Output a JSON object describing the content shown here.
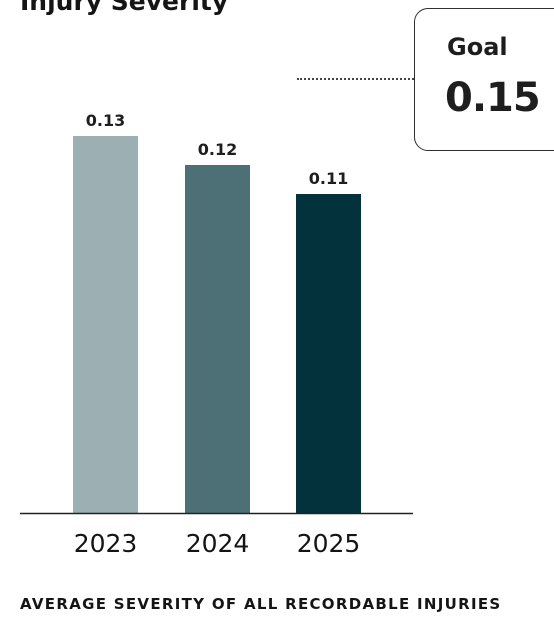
{
  "title": "Injury Severity",
  "goal": {
    "label": "Goal",
    "value": "0.15"
  },
  "footnote": "AVERAGE SEVERITY OF ALL RECORDABLE INJURIES",
  "colors": {
    "bar_2023": "#9cb0b4",
    "bar_2024": "#4d6f76",
    "bar_2025": "#03313c",
    "axis": "#222222"
  },
  "chart_data": {
    "type": "bar",
    "title": "Injury Severity",
    "categories": [
      "2023",
      "2024",
      "2025"
    ],
    "values": [
      0.13,
      0.12,
      0.11
    ],
    "data_labels": [
      "0.13",
      "0.12",
      "0.11"
    ],
    "ylim": [
      0,
      0.16
    ],
    "grid": false,
    "goal_line": 0.15
  }
}
